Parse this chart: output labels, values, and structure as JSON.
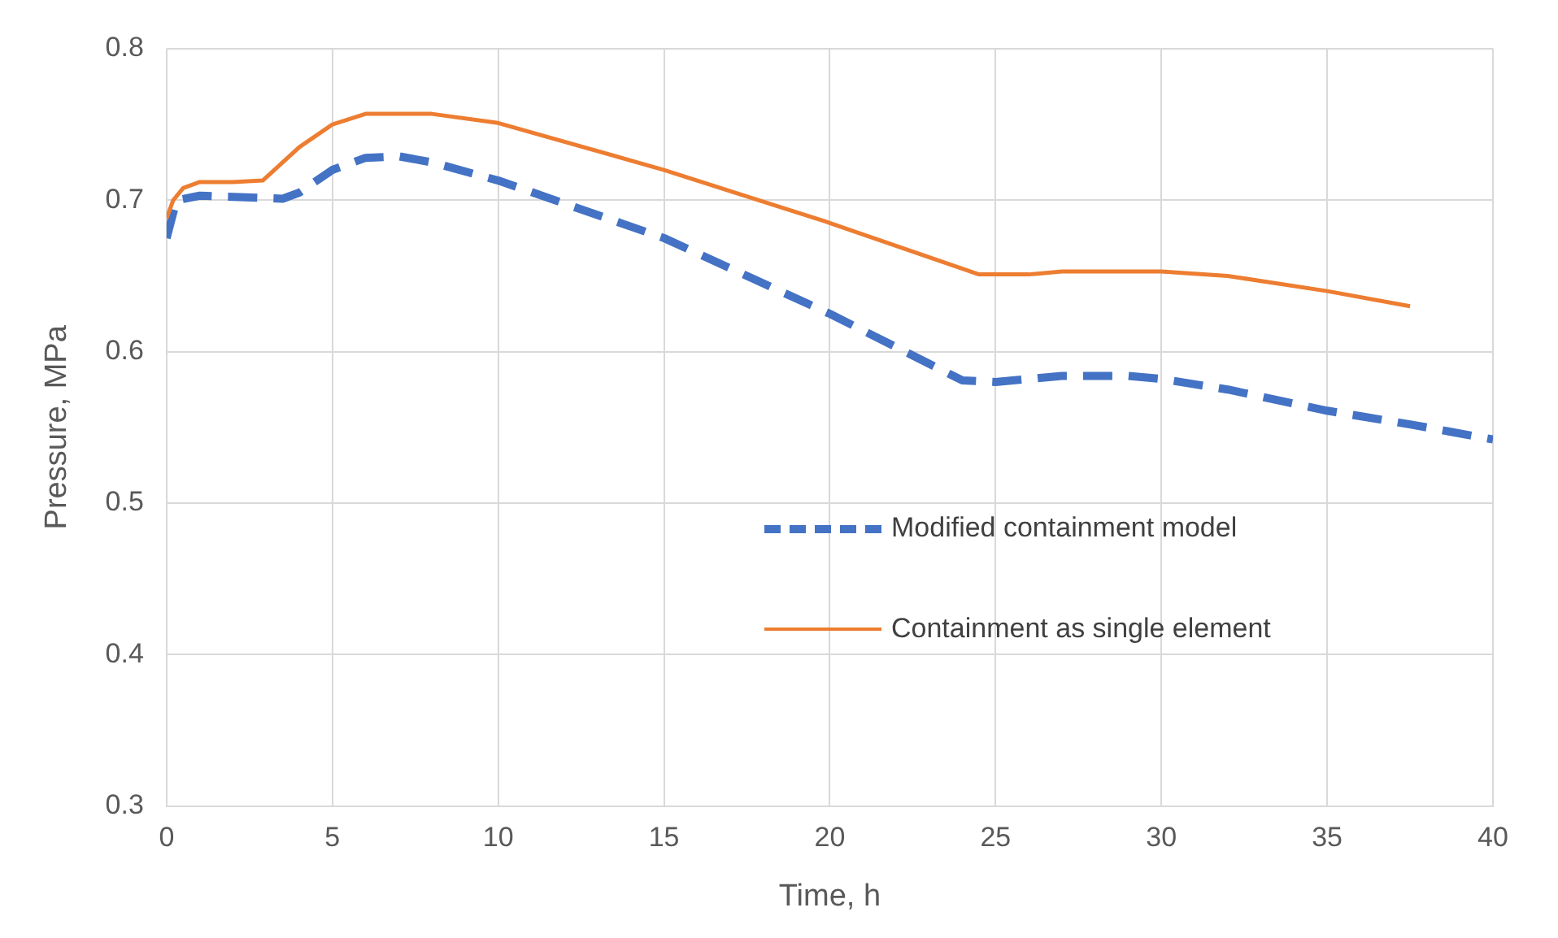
{
  "chart_data": {
    "type": "line",
    "xlabel": "Time, h",
    "ylabel": "Pressure, MPa",
    "xlim": [
      0,
      40
    ],
    "xticks": [
      0,
      5,
      10,
      15,
      20,
      25,
      30,
      35,
      40
    ],
    "ylim": [
      0.3,
      0.8
    ],
    "yticks": [
      0.3,
      0.4,
      0.5,
      0.6,
      0.7,
      0.8
    ],
    "grid": true,
    "legend": "right",
    "marker": "none",
    "series": [
      {
        "name": "Modified containment model",
        "color": "#4472c4",
        "line_style": "dashed",
        "x": [
          0,
          0.3,
          1,
          3.5,
          4,
          5,
          6,
          7,
          8,
          10,
          15,
          20,
          24,
          25,
          27,
          29,
          30,
          32,
          35,
          37.5,
          40
        ],
        "values": [
          0.675,
          0.7,
          0.703,
          0.701,
          0.705,
          0.72,
          0.728,
          0.729,
          0.725,
          0.713,
          0.675,
          0.625,
          0.581,
          0.58,
          0.584,
          0.584,
          0.582,
          0.575,
          0.561,
          0.552,
          0.542
        ]
      },
      {
        "name": "Containment as single element",
        "color": "#ed7d31",
        "line_style": "solid",
        "x": [
          0,
          0.2,
          0.5,
          1,
          2,
          2.9,
          4,
          5,
          6,
          8,
          10,
          15,
          20,
          24.5,
          26,
          27,
          30,
          32,
          35,
          37.5
        ],
        "values": [
          0.688,
          0.7,
          0.708,
          0.712,
          0.712,
          0.713,
          0.735,
          0.75,
          0.757,
          0.757,
          0.751,
          0.72,
          0.685,
          0.651,
          0.651,
          0.653,
          0.653,
          0.65,
          0.64,
          0.63
        ]
      }
    ]
  }
}
